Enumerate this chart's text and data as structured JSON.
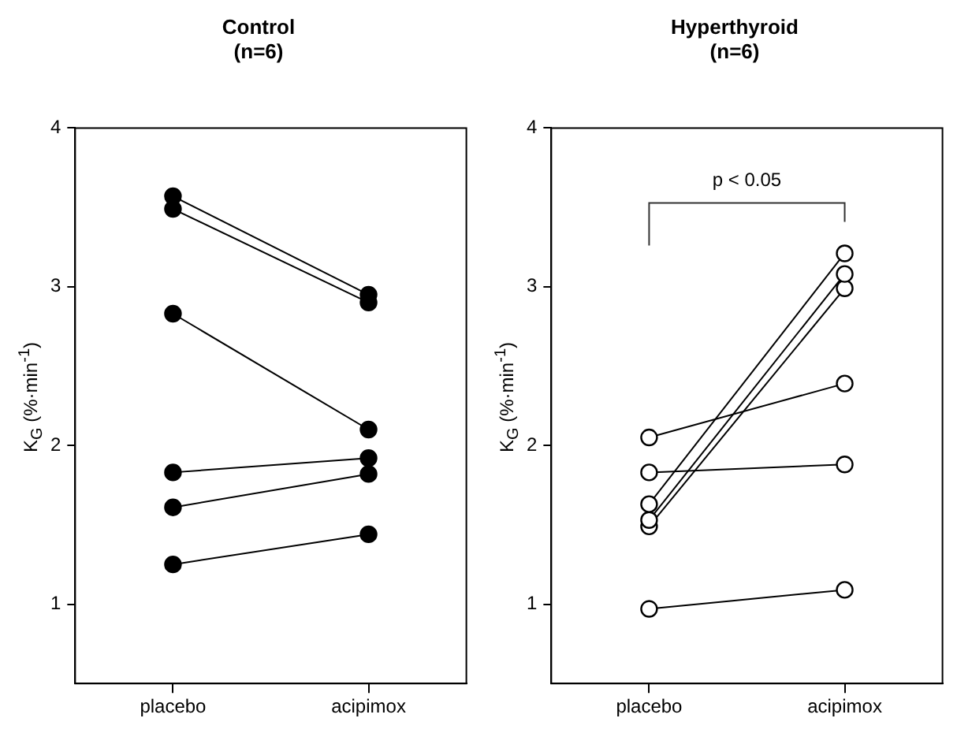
{
  "chart_data": [
    {
      "type": "line",
      "title": "Control\n(n=6)",
      "ylabel": "K$_{G}$ (%·min$^{-1}$)",
      "categories": [
        "placebo",
        "acipimox"
      ],
      "ylim": [
        0.5,
        4
      ],
      "yticks": [
        1,
        2,
        3,
        4
      ],
      "marker": "circle",
      "legend": false,
      "series": [
        {
          "color": "#000000",
          "values": [
            3.57,
            2.95
          ]
        },
        {
          "color": "#000000",
          "values": [
            3.49,
            2.9
          ]
        },
        {
          "color": "#000000",
          "values": [
            2.83,
            2.1
          ]
        },
        {
          "color": "#000000",
          "values": [
            1.83,
            1.92
          ]
        },
        {
          "color": "#000000",
          "values": [
            1.61,
            1.82
          ]
        },
        {
          "color": "#000000",
          "values": [
            1.25,
            1.44
          ]
        }
      ]
    },
    {
      "type": "line",
      "title": "Hyperthyroid\n(n=6)",
      "ylabel": "K$_{G}$ (%·min$^{-1}$)",
      "categories": [
        "placebo",
        "acipimox"
      ],
      "ylim": [
        0.5,
        4
      ],
      "yticks": [
        1,
        2,
        3,
        4
      ],
      "marker": "circle",
      "legend": false,
      "annotations": [
        "p < 0.05"
      ],
      "series": [
        {
          "color": "#ffffff",
          "values": [
            2.05,
            2.39
          ]
        },
        {
          "color": "#ffffff",
          "values": [
            1.83,
            1.88
          ]
        },
        {
          "color": "#ffffff",
          "values": [
            1.63,
            3.21
          ]
        },
        {
          "color": "#ffffff",
          "values": [
            1.53,
            3.08
          ]
        },
        {
          "color": "#ffffff",
          "values": [
            1.49,
            2.99
          ]
        },
        {
          "color": "#ffffff",
          "values": [
            0.97,
            1.09
          ]
        }
      ]
    }
  ]
}
